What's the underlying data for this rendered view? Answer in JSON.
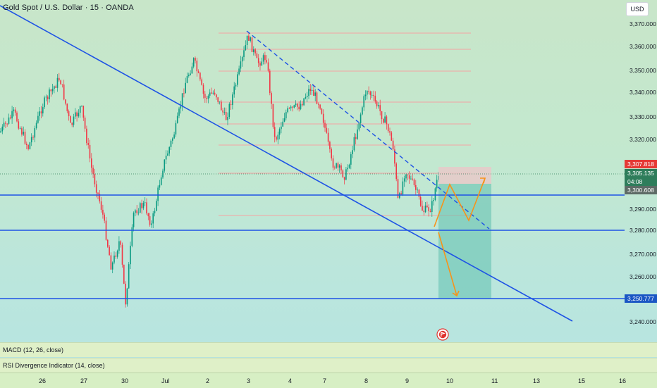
{
  "header": {
    "title": "Gold Spot / U.S. Dollar · 15 · OANDA"
  },
  "currency": "USD",
  "y_axis": {
    "ticks": [
      "3,370.000",
      "3,360.000",
      "3,350.000",
      "3,340.000",
      "3,330.000",
      "3,320.000",
      "3,290.000",
      "3,280.000",
      "3,270.000",
      "3,260.000",
      "3,240.000"
    ]
  },
  "price_tags": {
    "top": "3,307.818",
    "current": "3,305.135",
    "countdown": "04:08",
    "low": "3,300.608",
    "target": "3,250.777",
    "colors": {
      "top": "#e53935",
      "current": "#2e7d5b",
      "low": "#5d6b66",
      "target": "#1a56c4"
    }
  },
  "indicators": {
    "macd": "MACD (12, 26, close)",
    "rsi": "RSI Divergence Indicator (14, close)"
  },
  "x_axis": {
    "labels": [
      "26",
      "27",
      "30",
      "Jul",
      "2",
      "3",
      "4",
      "7",
      "8",
      "9",
      "10",
      "11",
      "13",
      "15",
      "16"
    ]
  },
  "colors": {
    "up": "#089981",
    "down": "#f23645",
    "trendline": "#1e53e5",
    "projection": "#f7931a",
    "fib": "#f4a3a3",
    "short_zone_top": "#e9c6c6",
    "short_zone_bottom": "#5cbfb0"
  },
  "icons": {
    "flag": "flag-icon"
  }
}
